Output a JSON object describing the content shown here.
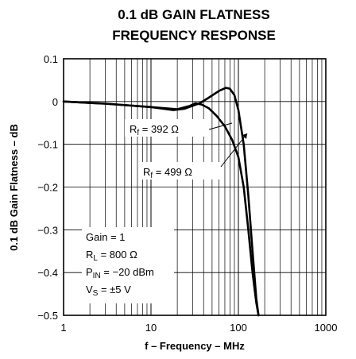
{
  "chart_data": {
    "type": "line",
    "title_lines": [
      "0.1 dB GAIN FLATNESS",
      "FREQUENCY RESPONSE"
    ],
    "xlabel": "f – Frequency – MHz",
    "ylabel": "0.1 dB Gain Flatness – dB",
    "x_scale": "log",
    "xlim": [
      1,
      1000
    ],
    "ylim": [
      -0.5,
      0.1
    ],
    "x_ticks": [
      1,
      10,
      100,
      1000
    ],
    "x_tick_labels": [
      "1",
      "10",
      "100",
      "1000"
    ],
    "y_ticks": [
      0.1,
      0,
      -0.1,
      -0.2,
      -0.3,
      -0.4,
      -0.5
    ],
    "y_tick_labels": [
      "0.1",
      "0",
      "−0.1",
      "−0.2",
      "−0.3",
      "−0.4",
      "−0.5"
    ],
    "grid": true,
    "series": [
      {
        "name": "Rf = 392 Ω",
        "label_main": "R",
        "label_sub": "f",
        "label_rest": " = 392 Ω",
        "color": "#000000",
        "x": [
          1,
          3,
          10,
          18,
          24,
          30,
          36,
          45,
          60,
          72,
          80,
          90,
          100,
          115,
          130,
          145,
          160,
          170
        ],
        "y": [
          0.0,
          -0.005,
          -0.013,
          -0.02,
          -0.017,
          -0.01,
          -0.004,
          0.008,
          0.025,
          0.032,
          0.03,
          0.015,
          -0.02,
          -0.1,
          -0.22,
          -0.35,
          -0.46,
          -0.5
        ]
      },
      {
        "name": "Rf = 499 Ω",
        "label_main": "R",
        "label_sub": "f",
        "label_rest": " = 499 Ω",
        "color": "#000000",
        "x": [
          1,
          3,
          10,
          20,
          28,
          32,
          38,
          46,
          56,
          70,
          85,
          100,
          115,
          130,
          145,
          160,
          170
        ],
        "y": [
          0.0,
          -0.005,
          -0.013,
          -0.018,
          -0.01,
          -0.004,
          -0.007,
          -0.016,
          -0.033,
          -0.058,
          -0.09,
          -0.13,
          -0.2,
          -0.3,
          -0.4,
          -0.47,
          -0.5
        ]
      }
    ],
    "conditions": [
      {
        "main": "Gain = 1",
        "sub": "",
        "rest": ""
      },
      {
        "main": "R",
        "sub": "L",
        "rest": " = 800 Ω"
      },
      {
        "main": "P",
        "sub": "IN",
        "rest": " = −20 dBm"
      },
      {
        "main": "V",
        "sub": "S",
        "rest": " = ±5 V"
      }
    ]
  }
}
